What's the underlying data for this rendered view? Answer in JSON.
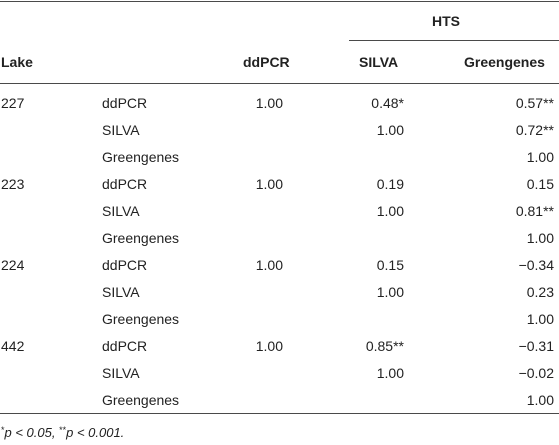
{
  "header": {
    "group": "HTS",
    "col_lake": "Lake",
    "col_ddpcr": "ddPCR",
    "col_silva": "SILVA",
    "col_greengenes": "Greengenes"
  },
  "rows": [
    {
      "lake": "227",
      "method": "ddPCR",
      "ddpcr": "1.00",
      "silva": "0.48*",
      "greengenes": "0.57**"
    },
    {
      "lake": "",
      "method": "SILVA",
      "ddpcr": "",
      "silva": "1.00",
      "greengenes": "0.72**"
    },
    {
      "lake": "",
      "method": "Greengenes",
      "ddpcr": "",
      "silva": "",
      "greengenes": "1.00"
    },
    {
      "lake": "223",
      "method": "ddPCR",
      "ddpcr": "1.00",
      "silva": "0.19",
      "greengenes": "0.15"
    },
    {
      "lake": "",
      "method": "SILVA",
      "ddpcr": "",
      "silva": "1.00",
      "greengenes": "0.81**"
    },
    {
      "lake": "",
      "method": "Greengenes",
      "ddpcr": "",
      "silva": "",
      "greengenes": "1.00"
    },
    {
      "lake": "224",
      "method": "ddPCR",
      "ddpcr": "1.00",
      "silva": "0.15",
      "greengenes": "−0.34"
    },
    {
      "lake": "",
      "method": "SILVA",
      "ddpcr": "",
      "silva": "1.00",
      "greengenes": "0.23"
    },
    {
      "lake": "",
      "method": "Greengenes",
      "ddpcr": "",
      "silva": "",
      "greengenes": "1.00"
    },
    {
      "lake": "442",
      "method": "ddPCR",
      "ddpcr": "1.00",
      "silva": "0.85**",
      "greengenes": "−0.31"
    },
    {
      "lake": "",
      "method": "SILVA",
      "ddpcr": "",
      "silva": "1.00",
      "greengenes": "−0.02"
    },
    {
      "lake": "",
      "method": "Greengenes",
      "ddpcr": "",
      "silva": "",
      "greengenes": "1.00"
    }
  ],
  "footnote": {
    "sym1": "*",
    "text1": "p < 0.05, ",
    "sym2": "**",
    "text2": "p < 0.001."
  }
}
